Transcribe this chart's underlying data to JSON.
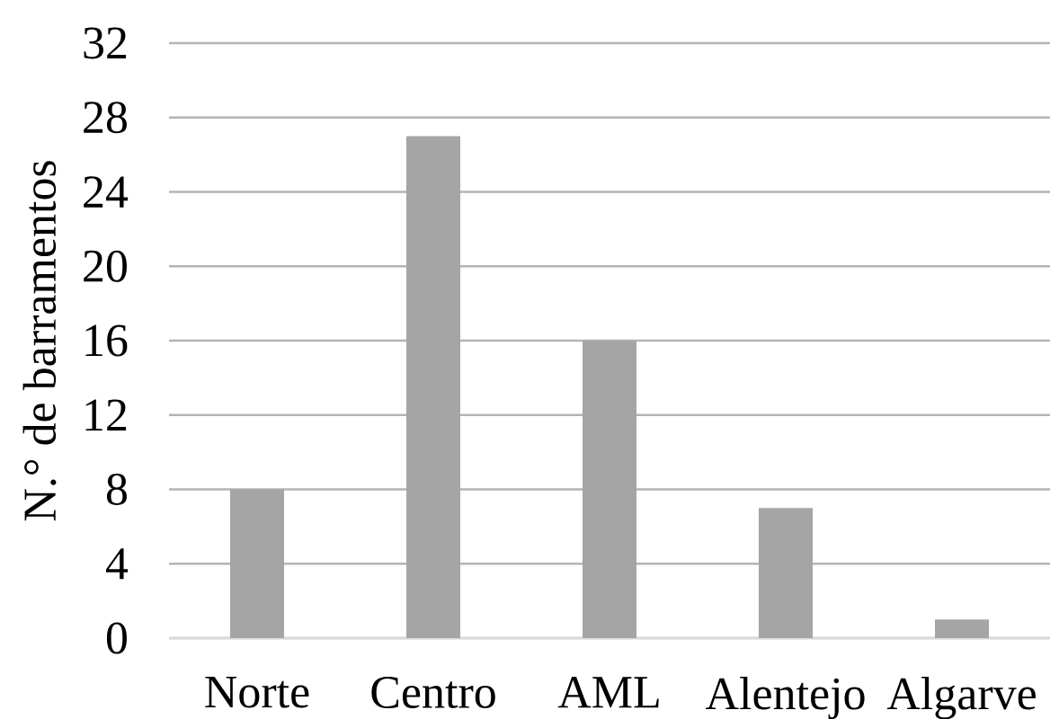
{
  "chart_data": {
    "type": "bar",
    "ylabel": "N.° de barramentos",
    "categories": [
      "Norte",
      "Centro",
      "AML",
      "Alentejo",
      "Algarve"
    ],
    "values": [
      8,
      27,
      16,
      7,
      1
    ],
    "color": "#a5a5a5",
    "ylim": [
      0,
      32
    ],
    "yticks": [
      0,
      4,
      8,
      12,
      16,
      20,
      24,
      28,
      32
    ],
    "grid": "y"
  }
}
